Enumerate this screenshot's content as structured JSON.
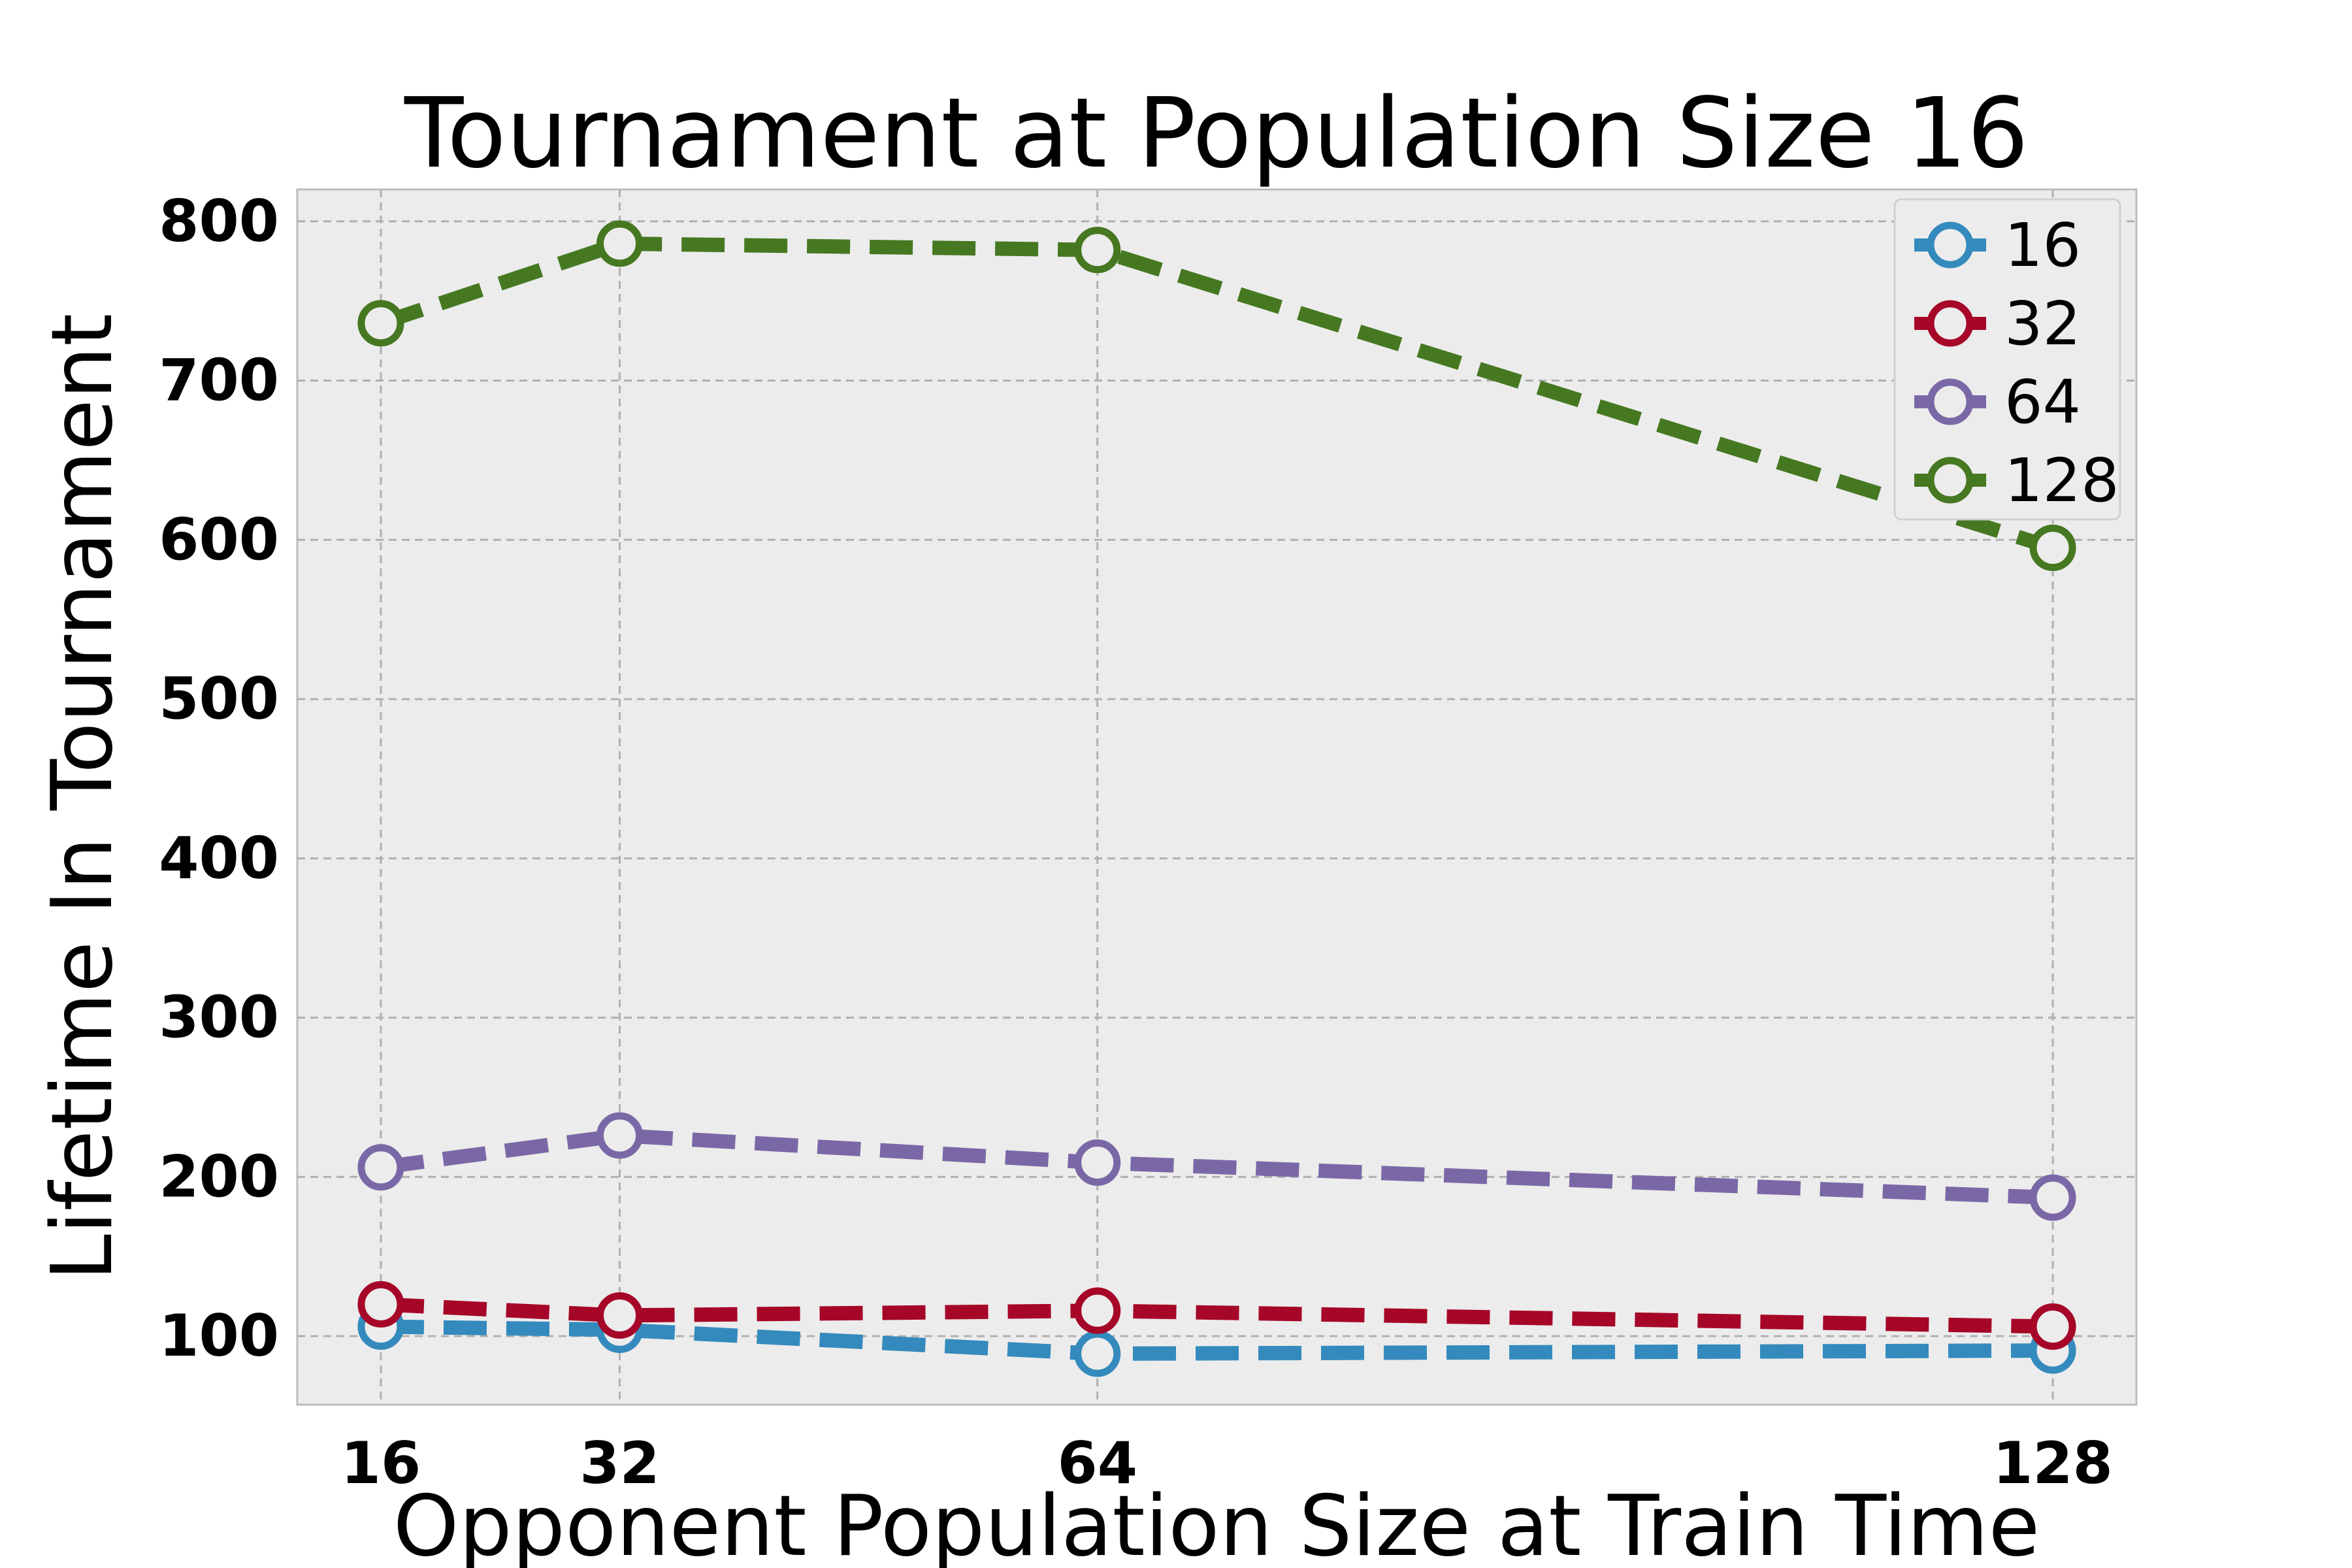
{
  "chart_data": {
    "type": "line",
    "title": "Tournament at Population Size 16",
    "xlabel": "Opponent Population Size at Train Time",
    "ylabel": "Lifetime In Tournament",
    "x": [
      16,
      32,
      64,
      128
    ],
    "x_tick_labels": [
      "16",
      "32",
      "64",
      "128"
    ],
    "y_ticks": [
      100,
      200,
      300,
      400,
      500,
      600,
      700,
      800
    ],
    "y_tick_labels": [
      "100",
      "200",
      "300",
      "400",
      "500",
      "600",
      "700",
      "800"
    ],
    "xlim": [
      10.4,
      133.6
    ],
    "ylim": [
      57,
      820
    ],
    "grid": true,
    "legend_position": "top-right",
    "series": [
      {
        "name": "16",
        "color": "#348ABD",
        "values": [
          106,
          104,
          89,
          91
        ]
      },
      {
        "name": "32",
        "color": "#A60628",
        "values": [
          120,
          113,
          116,
          106
        ]
      },
      {
        "name": "64",
        "color": "#7A68A6",
        "values": [
          206,
          226,
          209,
          187
        ]
      },
      {
        "name": "128",
        "color": "#467821",
        "values": [
          736,
          786,
          782,
          595
        ]
      }
    ]
  }
}
